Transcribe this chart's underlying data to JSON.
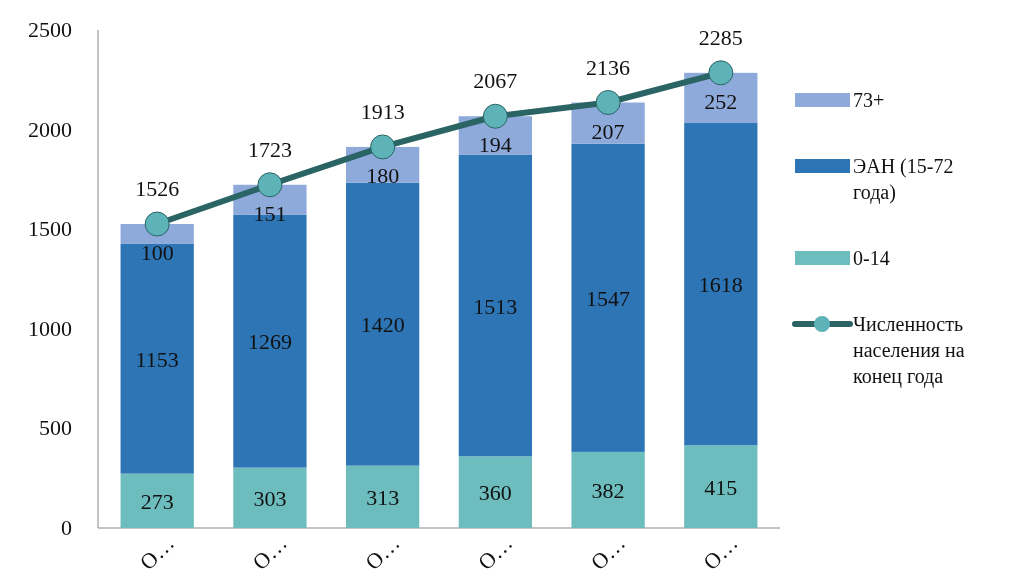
{
  "chart_data": {
    "type": "bar",
    "stacked": true,
    "categories": [
      "O…",
      "O…",
      "O…",
      "O…",
      "O…",
      "O…"
    ],
    "series": [
      {
        "name": "0-14",
        "color": "#6dbdbf",
        "values": [
          273,
          303,
          313,
          360,
          382,
          415
        ]
      },
      {
        "name": "ЭАН (15-72 года)",
        "color": "#2e75b6",
        "values": [
          1153,
          1269,
          1420,
          1513,
          1547,
          1618
        ]
      },
      {
        "name": "73+",
        "color": "#8eaadb",
        "values": [
          100,
          151,
          180,
          194,
          207,
          252
        ]
      },
      {
        "name": "Численность населения на конец года",
        "type": "line",
        "color": "#2b6464",
        "values": [
          1526,
          1723,
          1913,
          2067,
          2136,
          2285
        ]
      }
    ],
    "ylim": [
      0,
      2500
    ],
    "yticks": [
      0,
      500,
      1000,
      1500,
      2000,
      2500
    ],
    "data_labels": true,
    "legend": "right",
    "marker": "circle",
    "grid": false
  }
}
